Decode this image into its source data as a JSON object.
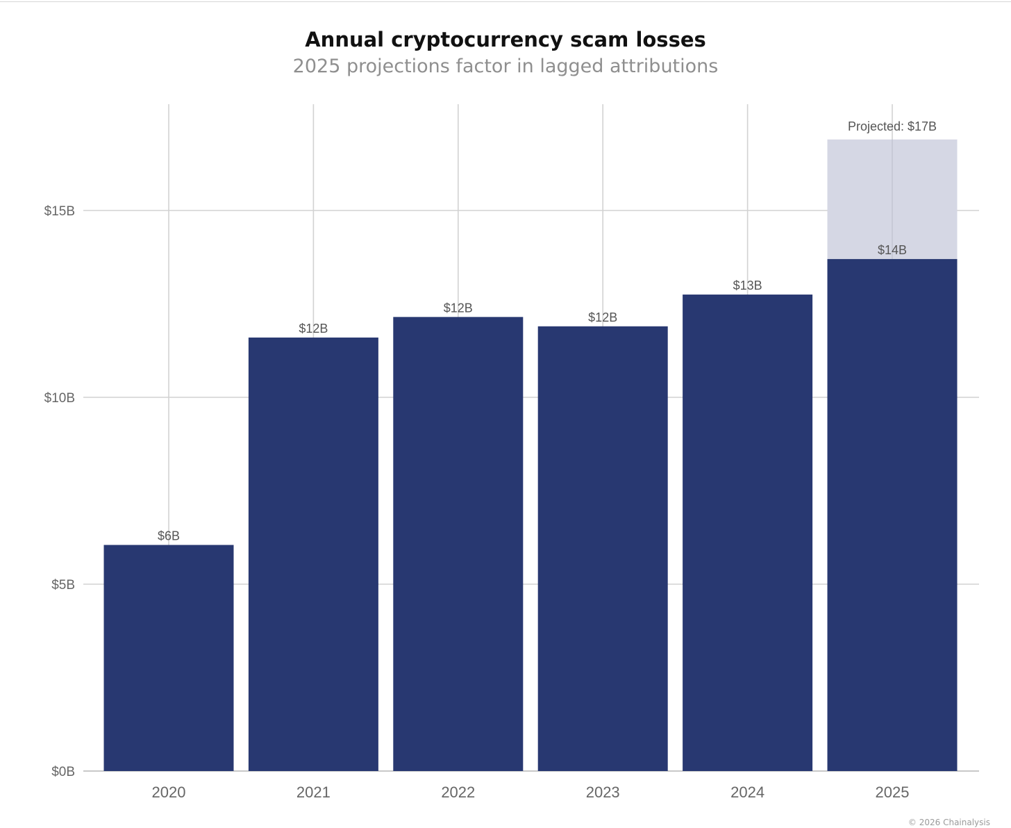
{
  "header": {
    "title": "Annual cryptocurrency scam losses",
    "subtitle": "2025 projections factor in lagged attributions"
  },
  "footer": {
    "credit": "© 2026 Chainalysis"
  },
  "chart_data": {
    "type": "bar",
    "title": "Annual cryptocurrency scam losses",
    "subtitle": "2025 projections factor in lagged attributions",
    "categories": [
      "2020",
      "2021",
      "2022",
      "2023",
      "2024",
      "2025"
    ],
    "series": [
      {
        "values": [
          6.05,
          11.6,
          12.15,
          11.9,
          12.75,
          13.7
        ],
        "data_labels": [
          "$6B",
          "$12B",
          "$12B",
          "$12B",
          "$13B",
          "$14B"
        ],
        "color": "#283871"
      },
      {
        "values": [
          null,
          null,
          null,
          null,
          null,
          16.9
        ],
        "data_labels": [
          "",
          "",
          "",
          "",
          "",
          "Projected: $17B"
        ],
        "color": "#d5d7e4"
      }
    ],
    "y_ticks": [
      0,
      5,
      10,
      15
    ],
    "y_tick_labels": [
      "$0B",
      "$5B",
      "$10B",
      "$15B"
    ],
    "ylim": [
      0,
      17.8
    ],
    "xlabel": "",
    "ylabel": "",
    "grid": true
  }
}
